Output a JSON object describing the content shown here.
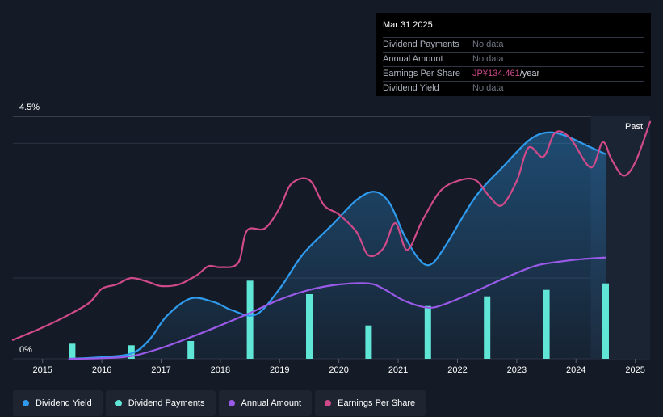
{
  "tooltip": {
    "date": "Mar 31 2025",
    "rows": [
      {
        "label": "Dividend Payments",
        "value": "No data"
      },
      {
        "label": "Annual Amount",
        "value": "No data"
      },
      {
        "label": "Earnings Per Share",
        "value": "JP¥134.461",
        "suffix": "/year"
      },
      {
        "label": "Dividend Yield",
        "value": "No data"
      }
    ]
  },
  "legend": [
    {
      "label": "Dividend Yield",
      "color": "#2f9bee"
    },
    {
      "label": "Dividend Payments",
      "color": "#5fe6d6"
    },
    {
      "label": "Annual Amount",
      "color": "#9a5ae8"
    },
    {
      "label": "Earnings Per Share",
      "color": "#d04a8a"
    }
  ],
  "chart_data": {
    "type": "line",
    "title": "",
    "y_top_label": "4.5%",
    "y_bottom_label": "0%",
    "ylim": [
      0,
      4.5
    ],
    "xlim": [
      2014.5,
      2025.25
    ],
    "past_label": "Past",
    "past_region_start": 2024.25,
    "x_ticks": [
      "2015",
      "2016",
      "2017",
      "2018",
      "2019",
      "2020",
      "2021",
      "2022",
      "2023",
      "2024",
      "2025"
    ],
    "series": [
      {
        "name": "Dividend Yield",
        "type": "area",
        "color": "#2f9bee",
        "points": [
          [
            2015.45,
            0.0
          ],
          [
            2016.0,
            0.03
          ],
          [
            2016.5,
            0.1
          ],
          [
            2016.8,
            0.35
          ],
          [
            2017.1,
            0.8
          ],
          [
            2017.5,
            1.12
          ],
          [
            2017.9,
            1.05
          ],
          [
            2018.2,
            0.9
          ],
          [
            2018.6,
            0.82
          ],
          [
            2019.0,
            1.3
          ],
          [
            2019.4,
            1.95
          ],
          [
            2019.9,
            2.5
          ],
          [
            2020.3,
            2.95
          ],
          [
            2020.6,
            3.1
          ],
          [
            2020.85,
            2.9
          ],
          [
            2021.1,
            2.3
          ],
          [
            2021.35,
            1.85
          ],
          [
            2021.55,
            1.75
          ],
          [
            2021.8,
            2.1
          ],
          [
            2022.3,
            3.0
          ],
          [
            2022.8,
            3.6
          ],
          [
            2023.2,
            4.05
          ],
          [
            2023.5,
            4.2
          ],
          [
            2023.8,
            4.15
          ],
          [
            2024.2,
            3.95
          ],
          [
            2024.5,
            3.8
          ]
        ]
      },
      {
        "name": "Annual Amount",
        "type": "line",
        "color": "#9a5ae8",
        "points": [
          [
            2015.45,
            0.0
          ],
          [
            2016.0,
            0.01
          ],
          [
            2016.5,
            0.05
          ],
          [
            2017.0,
            0.2
          ],
          [
            2017.5,
            0.4
          ],
          [
            2018.0,
            0.62
          ],
          [
            2018.5,
            0.85
          ],
          [
            2019.0,
            1.1
          ],
          [
            2019.5,
            1.28
          ],
          [
            2020.0,
            1.38
          ],
          [
            2020.5,
            1.4
          ],
          [
            2020.75,
            1.3
          ],
          [
            2021.1,
            1.08
          ],
          [
            2021.5,
            0.95
          ],
          [
            2021.8,
            1.02
          ],
          [
            2022.3,
            1.25
          ],
          [
            2022.8,
            1.5
          ],
          [
            2023.3,
            1.72
          ],
          [
            2023.7,
            1.8
          ],
          [
            2024.1,
            1.85
          ],
          [
            2024.5,
            1.88
          ]
        ]
      },
      {
        "name": "Earnings Per Share",
        "type": "line",
        "color": "#d04a8a",
        "points": [
          [
            2014.5,
            0.35
          ],
          [
            2015.0,
            0.58
          ],
          [
            2015.5,
            0.85
          ],
          [
            2015.8,
            1.05
          ],
          [
            2016.0,
            1.3
          ],
          [
            2016.25,
            1.38
          ],
          [
            2016.5,
            1.5
          ],
          [
            2016.8,
            1.42
          ],
          [
            2017.0,
            1.35
          ],
          [
            2017.3,
            1.38
          ],
          [
            2017.6,
            1.55
          ],
          [
            2017.8,
            1.72
          ],
          [
            2018.0,
            1.7
          ],
          [
            2018.3,
            1.78
          ],
          [
            2018.45,
            2.38
          ],
          [
            2018.75,
            2.42
          ],
          [
            2019.0,
            2.8
          ],
          [
            2019.2,
            3.25
          ],
          [
            2019.5,
            3.32
          ],
          [
            2019.75,
            2.85
          ],
          [
            2020.0,
            2.68
          ],
          [
            2020.3,
            2.35
          ],
          [
            2020.5,
            1.92
          ],
          [
            2020.75,
            2.05
          ],
          [
            2020.95,
            2.52
          ],
          [
            2021.15,
            2.02
          ],
          [
            2021.4,
            2.55
          ],
          [
            2021.7,
            3.1
          ],
          [
            2022.0,
            3.3
          ],
          [
            2022.3,
            3.32
          ],
          [
            2022.55,
            3.0
          ],
          [
            2022.75,
            2.85
          ],
          [
            2023.0,
            3.3
          ],
          [
            2023.2,
            3.92
          ],
          [
            2023.45,
            3.75
          ],
          [
            2023.65,
            4.2
          ],
          [
            2023.9,
            4.1
          ],
          [
            2024.25,
            3.55
          ],
          [
            2024.45,
            4.02
          ],
          [
            2024.6,
            3.7
          ],
          [
            2024.8,
            3.4
          ],
          [
            2025.0,
            3.65
          ],
          [
            2025.25,
            4.4
          ]
        ]
      }
    ],
    "bars": {
      "name": "Dividend Payments",
      "color": "#5fe6d6",
      "points": [
        [
          2015.5,
          0.28
        ],
        [
          2016.5,
          0.25
        ],
        [
          2017.5,
          0.33
        ],
        [
          2018.5,
          1.45
        ],
        [
          2019.5,
          1.2
        ],
        [
          2020.5,
          0.62
        ],
        [
          2021.5,
          0.98
        ],
        [
          2022.5,
          1.16
        ],
        [
          2023.5,
          1.28
        ],
        [
          2024.5,
          1.4
        ]
      ]
    }
  }
}
